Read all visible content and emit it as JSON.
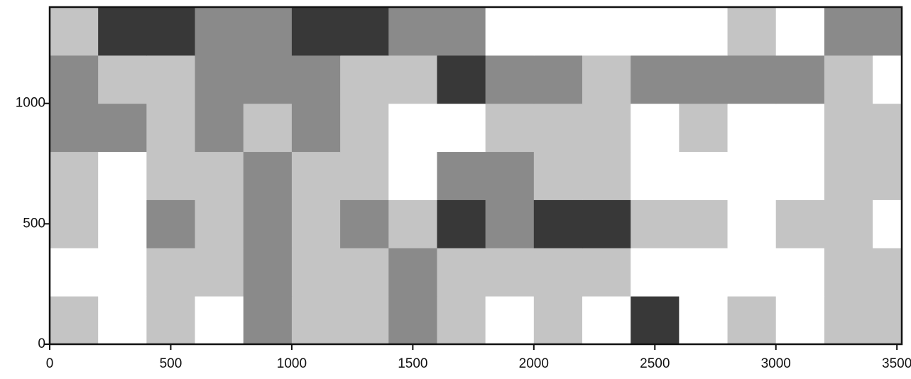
{
  "chart_data": {
    "type": "contour",
    "x": [
      100,
      300,
      500,
      700,
      900,
      1100,
      1300,
      1500,
      1700,
      1900,
      2100,
      2300,
      2500,
      2700,
      2900,
      3100,
      3300,
      3500
    ],
    "y": [
      100,
      300,
      500,
      700,
      900,
      1100,
      1300
    ],
    "z": [
      [
        1,
        0,
        1,
        0,
        2,
        1,
        1,
        2,
        1,
        0,
        1,
        0,
        3,
        0,
        1,
        0,
        1,
        1
      ],
      [
        0,
        0,
        1,
        1,
        2,
        1,
        1,
        2,
        1,
        1,
        1,
        1,
        0,
        0,
        0,
        0,
        1,
        1
      ],
      [
        1,
        0,
        2,
        1,
        2,
        1,
        2,
        1,
        3,
        2,
        3,
        3,
        1,
        1,
        0,
        1,
        1,
        0
      ],
      [
        1,
        0,
        1,
        1,
        2,
        1,
        1,
        0,
        2,
        2,
        1,
        1,
        0,
        0,
        0,
        0,
        1,
        1
      ],
      [
        2,
        2,
        1,
        2,
        1,
        2,
        1,
        0,
        0,
        1,
        1,
        1,
        0,
        1,
        0,
        0,
        1,
        1
      ],
      [
        2,
        1,
        1,
        2,
        2,
        2,
        1,
        1,
        3,
        2,
        2,
        1,
        2,
        2,
        2,
        2,
        1,
        0
      ],
      [
        1,
        3,
        3,
        2,
        2,
        3,
        3,
        2,
        2,
        0,
        0,
        0,
        0,
        0,
        1,
        0,
        2,
        2
      ]
    ],
    "colors": [
      "#ffffff",
      "#c4c4c4",
      "#8a8a8a",
      "#383838"
    ],
    "xlim": [
      0,
      3520
    ],
    "ylim": [
      0,
      1400
    ],
    "xticks": [
      0,
      500,
      1000,
      1500,
      2000,
      2500,
      3000,
      3500
    ],
    "yticks": [
      0,
      500,
      1000
    ]
  }
}
